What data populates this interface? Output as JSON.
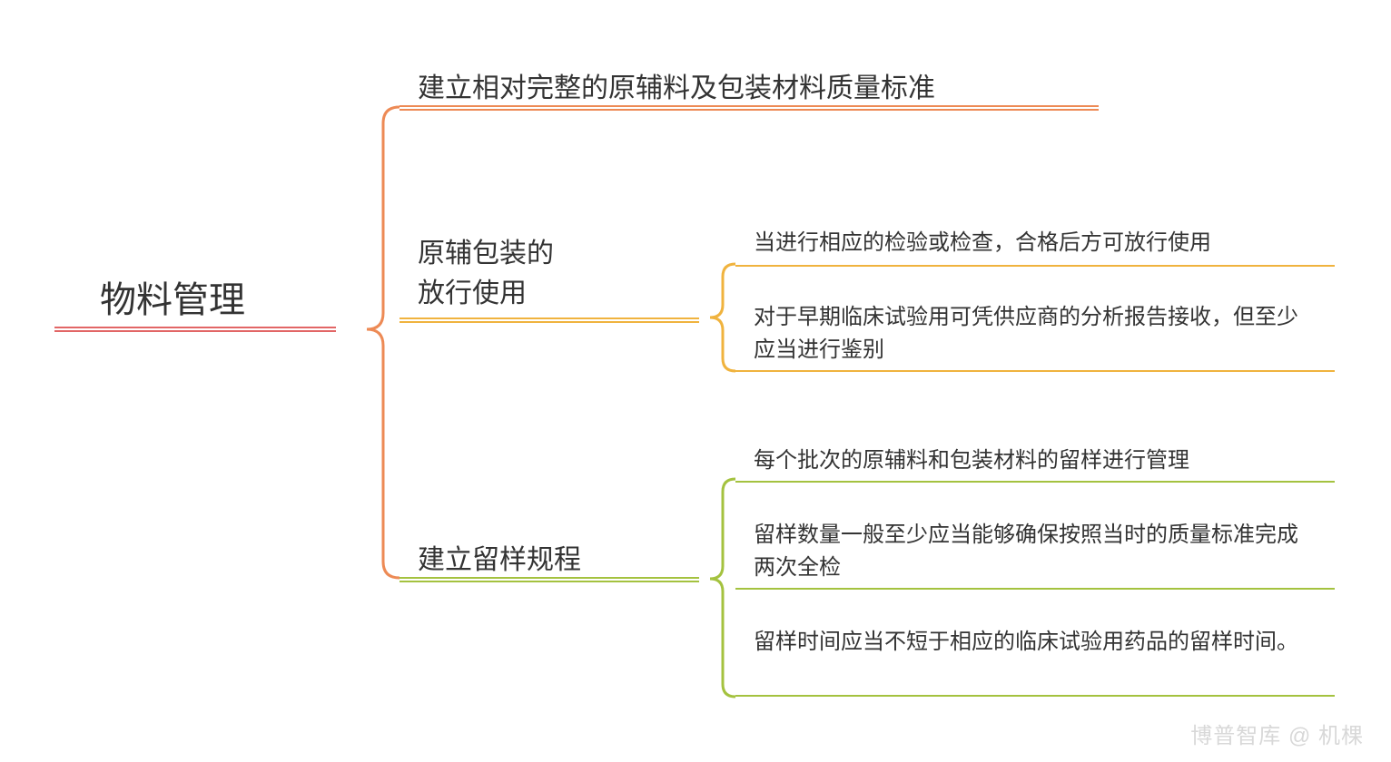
{
  "type": "tree",
  "background_color": "#ffffff",
  "font_family": "Microsoft YaHei",
  "watermark": "博普智库 @ 机棵",
  "colors": {
    "root_line": "#e26666",
    "child1_line": "#ed8a55",
    "child2_line": "#f0b33e",
    "child3_line": "#a4c23f",
    "brace_root": "#ed8a55",
    "brace_c2": "#f0b33e",
    "brace_c3": "#a4c23f",
    "text": "#333333",
    "watermark": "#d8d8d8"
  },
  "font_sizes": {
    "root": 40,
    "child": 30,
    "leaf": 24
  },
  "line_thickness": 2,
  "root": {
    "label": "物料管理"
  },
  "children": [
    {
      "label": "建立相对完整的原辅料及包装材料质量标准"
    },
    {
      "label": "原辅包装的\n放行使用",
      "children": [
        {
          "label": "当进行相应的检验或检查，合格后方可放行使用"
        },
        {
          "label": "对于早期临床试验用可凭供应商的分析报告接收，但至少应当进行鉴别"
        }
      ]
    },
    {
      "label": "建立留样规程",
      "children": [
        {
          "label": "每个批次的原辅料和包装材料的留样进行管理"
        },
        {
          "label": "留样数量一般至少应当能够确保按照当时的质量标准完成两次全检"
        },
        {
          "label": "留样时间应当不短于相应的临床试验用药品的留样时间。"
        }
      ]
    }
  ],
  "brace_style": {
    "stroke_width": 3,
    "corner_radius": 18
  }
}
